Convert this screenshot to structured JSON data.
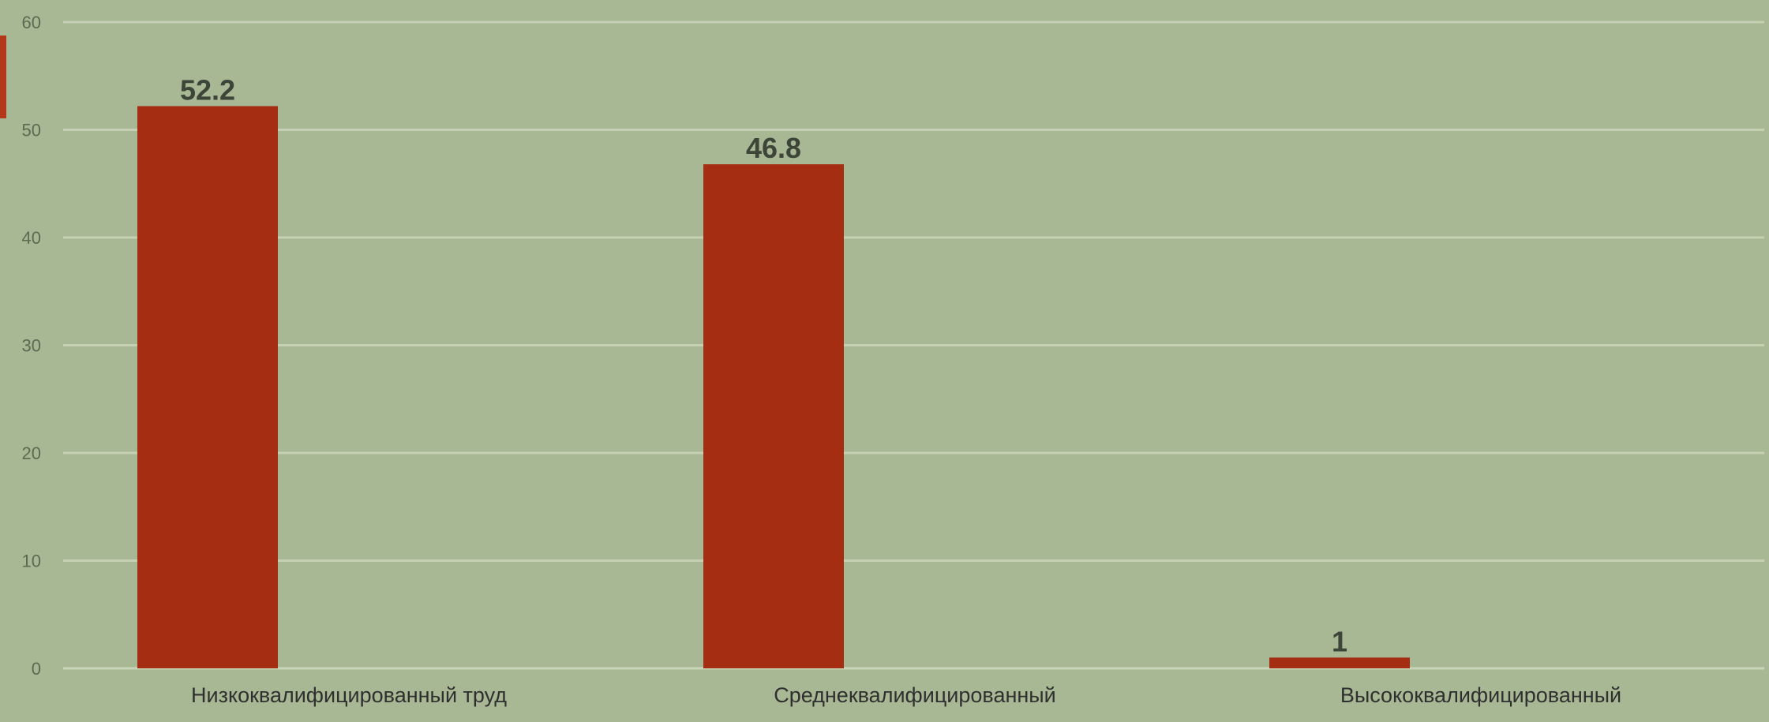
{
  "chart_data": {
    "type": "bar",
    "categories": [
      "Низкоквалифицированный труд",
      "Среднеквалифицированный",
      "Высококвалифицированный"
    ],
    "values": [
      52.2,
      46.8,
      1
    ],
    "data_labels": [
      "52.2",
      "46.8",
      "1"
    ],
    "ylim": [
      0,
      60
    ],
    "yticks": [
      0,
      10,
      20,
      30,
      40,
      50,
      60
    ],
    "ytick_labels": [
      "0",
      "10",
      "20",
      "30",
      "40",
      "50",
      "60"
    ],
    "grid": true,
    "legend": "none"
  },
  "colors": {
    "background": "#a9b894",
    "bar": "#a52e12",
    "grid": "#c5d1b2",
    "axis": "#c9d5b8",
    "accent_left": "#b5371a"
  }
}
